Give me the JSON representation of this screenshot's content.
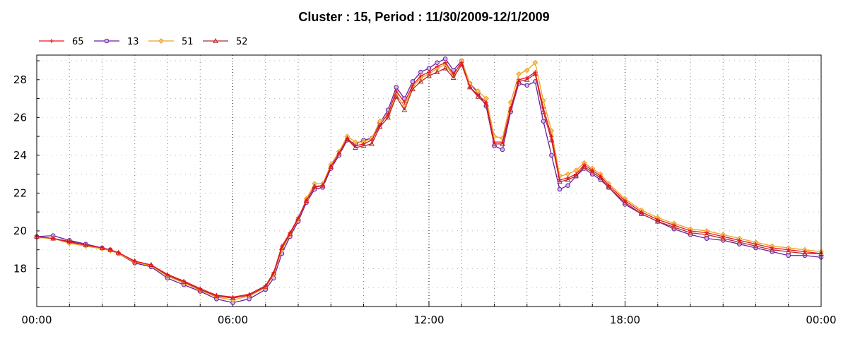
{
  "chart_data": {
    "type": "line",
    "title": "Cluster : 15, Period : 11/30/2009-12/1/2009",
    "xlabel": "",
    "ylabel": "",
    "x_range_hours": [
      0,
      24
    ],
    "ylim": [
      16.0,
      29.3
    ],
    "x_ticks": [
      {
        "hour": 0,
        "label": "00:00"
      },
      {
        "hour": 6,
        "label": "06:00"
      },
      {
        "hour": 12,
        "label": "12:00"
      },
      {
        "hour": 18,
        "label": "18:00"
      },
      {
        "hour": 24,
        "label": "00:00"
      }
    ],
    "y_ticks": [
      {
        "value": 18,
        "label": "18"
      },
      {
        "value": 20,
        "label": "20"
      },
      {
        "value": 22,
        "label": "22"
      },
      {
        "value": 24,
        "label": "24"
      },
      {
        "value": 26,
        "label": "26"
      },
      {
        "value": 28,
        "label": "28"
      }
    ],
    "grid": true,
    "legend_position": "top-left",
    "x_hours": [
      0,
      0.5,
      1,
      1.5,
      2,
      2.25,
      2.5,
      3,
      3.5,
      4,
      4.5,
      5,
      5.5,
      6,
      6.5,
      7,
      7.25,
      7.5,
      7.75,
      8,
      8.25,
      8.5,
      8.75,
      9,
      9.25,
      9.5,
      9.75,
      10,
      10.25,
      10.5,
      10.75,
      11,
      11.25,
      11.5,
      11.75,
      12,
      12.25,
      12.5,
      12.75,
      13,
      13.25,
      13.5,
      13.75,
      14,
      14.25,
      14.5,
      14.75,
      15,
      15.25,
      15.5,
      15.75,
      16,
      16.25,
      16.5,
      16.75,
      17,
      17.25,
      17.5,
      18,
      18.5,
      19,
      19.5,
      20,
      20.5,
      21,
      21.5,
      22,
      22.5,
      23,
      23.5,
      24
    ],
    "series": [
      {
        "name": "65",
        "color": "#e8141e",
        "marker": "plus",
        "values": [
          19.7,
          19.6,
          19.4,
          19.25,
          19.1,
          19.0,
          18.85,
          18.4,
          18.2,
          17.7,
          17.35,
          16.95,
          16.6,
          16.5,
          16.65,
          17.1,
          17.8,
          19.2,
          19.9,
          20.7,
          21.6,
          22.3,
          22.4,
          23.4,
          24.1,
          24.9,
          24.5,
          24.6,
          24.8,
          25.6,
          26.2,
          27.4,
          26.8,
          27.7,
          28.2,
          28.4,
          28.7,
          28.9,
          28.3,
          28.9,
          27.6,
          27.2,
          26.8,
          24.7,
          24.7,
          26.5,
          28.0,
          28.1,
          28.4,
          26.5,
          25.0,
          22.7,
          22.8,
          23.0,
          23.5,
          23.2,
          22.9,
          22.4,
          21.6,
          21.0,
          20.6,
          20.3,
          20.0,
          19.9,
          19.7,
          19.5,
          19.3,
          19.1,
          19.0,
          18.9,
          18.8
        ]
      },
      {
        "name": "13",
        "color": "#6a1fa0",
        "marker": "circle",
        "values": [
          19.7,
          19.75,
          19.5,
          19.3,
          19.1,
          19.0,
          18.8,
          18.3,
          18.1,
          17.5,
          17.15,
          16.8,
          16.4,
          16.2,
          16.4,
          16.9,
          17.5,
          18.8,
          19.7,
          20.5,
          21.5,
          22.2,
          22.3,
          23.3,
          24.0,
          24.8,
          24.6,
          24.8,
          24.9,
          25.7,
          26.4,
          27.6,
          27.0,
          27.9,
          28.4,
          28.6,
          28.9,
          29.1,
          28.5,
          29.0,
          27.8,
          27.3,
          26.6,
          24.5,
          24.3,
          26.3,
          27.8,
          27.7,
          27.9,
          25.8,
          24.0,
          22.2,
          22.4,
          22.9,
          23.3,
          23.0,
          22.7,
          22.3,
          21.4,
          20.9,
          20.5,
          20.1,
          19.8,
          19.6,
          19.5,
          19.3,
          19.1,
          18.9,
          18.7,
          18.7,
          18.6
        ]
      },
      {
        "name": "51",
        "color": "#f0a01e",
        "marker": "diamond",
        "values": [
          19.65,
          19.6,
          19.35,
          19.2,
          19.05,
          18.95,
          18.8,
          18.35,
          18.15,
          17.6,
          17.25,
          16.85,
          16.5,
          16.35,
          16.55,
          17.0,
          17.7,
          19.0,
          19.8,
          20.6,
          21.7,
          22.5,
          22.5,
          23.5,
          24.2,
          25.0,
          24.7,
          24.7,
          24.9,
          25.8,
          26.1,
          27.2,
          26.6,
          27.6,
          28.1,
          28.3,
          28.6,
          28.8,
          28.2,
          29.0,
          27.8,
          27.4,
          27.0,
          25.0,
          24.9,
          26.8,
          28.3,
          28.5,
          28.9,
          26.9,
          25.3,
          22.9,
          23.0,
          23.2,
          23.6,
          23.3,
          23.0,
          22.5,
          21.7,
          21.1,
          20.7,
          20.4,
          20.1,
          20.0,
          19.8,
          19.6,
          19.4,
          19.2,
          19.1,
          19.0,
          18.9
        ]
      },
      {
        "name": "52",
        "color": "#b4282d",
        "marker": "triangle",
        "values": [
          19.7,
          19.6,
          19.45,
          19.25,
          19.1,
          19.0,
          18.85,
          18.4,
          18.2,
          17.65,
          17.3,
          16.9,
          16.55,
          16.45,
          16.6,
          17.05,
          17.75,
          19.1,
          19.85,
          20.65,
          21.6,
          22.35,
          22.4,
          23.4,
          24.1,
          24.85,
          24.4,
          24.5,
          24.6,
          25.5,
          26.0,
          27.1,
          26.4,
          27.5,
          27.9,
          28.2,
          28.4,
          28.6,
          28.1,
          28.8,
          27.6,
          27.1,
          26.7,
          24.6,
          24.6,
          26.4,
          27.9,
          28.0,
          28.3,
          26.3,
          24.8,
          22.6,
          22.7,
          22.9,
          23.4,
          23.1,
          22.8,
          22.3,
          21.5,
          20.9,
          20.5,
          20.2,
          19.9,
          19.8,
          19.6,
          19.4,
          19.2,
          19.0,
          18.9,
          18.8,
          18.8
        ]
      }
    ]
  }
}
